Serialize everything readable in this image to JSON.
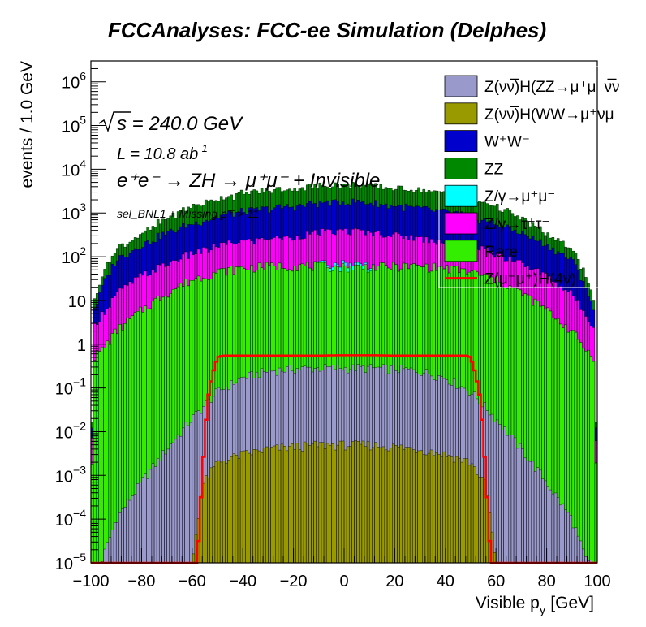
{
  "chart_data": {
    "type": "histogram-stacked",
    "title": "FCCAnalyses: FCC-ee Simulation (Delphes)",
    "xlabel": "Visible p",
    "xlabel_sub": "y",
    "xlabel_unit": "[GeV]",
    "ylabel": "events / 1.0 GeV",
    "xlim": [
      -100,
      100
    ],
    "ylim": [
      1e-05,
      3000000
    ],
    "yscale": "log",
    "bin_width": 1.0,
    "x_ticks": [
      {
        "value": -100,
        "label": "−100"
      },
      {
        "value": -80,
        "label": "−80"
      },
      {
        "value": -60,
        "label": "−60"
      },
      {
        "value": -40,
        "label": "−40"
      },
      {
        "value": -20,
        "label": "−20"
      },
      {
        "value": 0,
        "label": "0"
      },
      {
        "value": 20,
        "label": "20"
      },
      {
        "value": 40,
        "label": "40"
      },
      {
        "value": 60,
        "label": "60"
      },
      {
        "value": 80,
        "label": "80"
      },
      {
        "value": 100,
        "label": "100"
      }
    ],
    "y_ticks": [
      {
        "value": 1e-05,
        "base": "10",
        "exp": "−5"
      },
      {
        "value": 0.0001,
        "base": "10",
        "exp": "−4"
      },
      {
        "value": 0.001,
        "base": "10",
        "exp": "−3"
      },
      {
        "value": 0.01,
        "base": "10",
        "exp": "−2"
      },
      {
        "value": 0.1,
        "base": "10",
        "exp": "−1"
      },
      {
        "value": 1,
        "base": "1",
        "exp": ""
      },
      {
        "value": 10,
        "base": "10",
        "exp": ""
      },
      {
        "value": 100,
        "base": "10",
        "exp": "2"
      },
      {
        "value": 1000,
        "base": "10",
        "exp": "3"
      },
      {
        "value": 10000,
        "base": "10",
        "exp": "4"
      },
      {
        "value": 100000,
        "base": "10",
        "exp": "5"
      },
      {
        "value": 1000000,
        "base": "10",
        "exp": "6"
      }
    ],
    "annotations": {
      "sqrt_s": "s = 240.0 GeV",
      "lumi_prefix": "L = 10.8 ab",
      "lumi_exp": "-1",
      "process": "e⁺e⁻ → ZH → μ⁺μ⁻ + Invisible",
      "selection": "sel_BNL1 + Missing pT > 11"
    },
    "stack_profiles_comment_free": true,
    "series": [
      {
        "name": "Z(νν̅)H(ZZ→μ⁺μ⁻ν̅ν)",
        "color": "#9999cc",
        "profile": [
          [
            -98,
            1e-05
          ],
          [
            -96,
            1e-05
          ],
          [
            -90,
            0.0001
          ],
          [
            -80,
            0.0007
          ],
          [
            -70,
            0.004
          ],
          [
            -60,
            0.02
          ],
          [
            -50,
            0.08
          ],
          [
            -40,
            0.17
          ],
          [
            -30,
            0.24
          ],
          [
            -20,
            0.27
          ],
          [
            -10,
            0.28
          ],
          [
            0,
            0.28
          ],
          [
            10,
            0.28
          ],
          [
            20,
            0.27
          ],
          [
            30,
            0.24
          ],
          [
            40,
            0.17
          ],
          [
            50,
            0.08
          ],
          [
            60,
            0.02
          ],
          [
            70,
            0.004
          ],
          [
            80,
            0.0007
          ],
          [
            90,
            0.0001
          ],
          [
            96,
            1e-05
          ],
          [
            98,
            1e-05
          ]
        ]
      },
      {
        "name": "Z(νν̅)H(WW→μ⁺νμ⁻ν̅)",
        "color": "#999900",
        "profile": [
          [
            -60,
            1e-05
          ],
          [
            -56,
            0.0006
          ],
          [
            -50,
            0.002
          ],
          [
            -40,
            0.003
          ],
          [
            -30,
            0.004
          ],
          [
            -20,
            0.0045
          ],
          [
            -10,
            0.005
          ],
          [
            0,
            0.005
          ],
          [
            10,
            0.005
          ],
          [
            20,
            0.0045
          ],
          [
            30,
            0.004
          ],
          [
            40,
            0.003
          ],
          [
            50,
            0.002
          ],
          [
            56,
            0.0006
          ],
          [
            60,
            1e-05
          ]
        ]
      },
      {
        "name": "W⁺W⁻",
        "color": "#0000cc",
        "profile": [
          [
            -100,
            1e-05
          ],
          [
            -99,
            3
          ],
          [
            -95,
            20
          ],
          [
            -90,
            70
          ],
          [
            -80,
            150
          ],
          [
            -70,
            280
          ],
          [
            -60,
            450
          ],
          [
            -50,
            650
          ],
          [
            -40,
            850
          ],
          [
            -30,
            1000
          ],
          [
            -20,
            1150
          ],
          [
            -10,
            1300
          ],
          [
            0,
            1400
          ],
          [
            10,
            1350
          ],
          [
            20,
            1150
          ],
          [
            30,
            1000
          ],
          [
            40,
            850
          ],
          [
            50,
            650
          ],
          [
            60,
            450
          ],
          [
            70,
            280
          ],
          [
            80,
            150
          ],
          [
            90,
            70
          ],
          [
            95,
            20
          ],
          [
            99,
            3
          ],
          [
            100,
            1e-05
          ]
        ]
      },
      {
        "name": "ZZ",
        "color": "#008800",
        "profile": [
          [
            -100,
            1e-05
          ],
          [
            -99,
            3
          ],
          [
            -95,
            20
          ],
          [
            -90,
            70
          ],
          [
            -80,
            150
          ],
          [
            -75,
            260
          ],
          [
            -70,
            400
          ],
          [
            -60,
            900
          ],
          [
            -50,
            1300
          ],
          [
            -40,
            1700
          ],
          [
            -30,
            2000
          ],
          [
            -20,
            2200
          ],
          [
            -10,
            2500
          ],
          [
            0,
            2700
          ],
          [
            10,
            2600
          ],
          [
            20,
            2200
          ],
          [
            30,
            2000
          ],
          [
            40,
            1700
          ],
          [
            50,
            1300
          ],
          [
            60,
            900
          ],
          [
            70,
            400
          ],
          [
            75,
            260
          ],
          [
            80,
            150
          ],
          [
            90,
            70
          ],
          [
            95,
            20
          ],
          [
            99,
            3
          ],
          [
            100,
            1e-05
          ]
        ]
      },
      {
        "name": "Z/γ→μ⁺μ⁻",
        "color": "#00ffff",
        "profile": [
          [
            -13,
            0.0
          ],
          [
            -12,
            2.0
          ],
          [
            -10,
            6.0
          ],
          [
            -5,
            10
          ],
          [
            0,
            11
          ],
          [
            5,
            10
          ],
          [
            10,
            8.0
          ],
          [
            12,
            2.0
          ],
          [
            13,
            0.0
          ]
        ]
      },
      {
        "name": "Z/γ→τ⁺τ⁻",
        "color": "#ff00ff",
        "profile": [
          [
            -100,
            1e-05
          ],
          [
            -99,
            2
          ],
          [
            -90,
            12
          ],
          [
            -80,
            30
          ],
          [
            -70,
            55
          ],
          [
            -60,
            90
          ],
          [
            -50,
            130
          ],
          [
            -40,
            170
          ],
          [
            -30,
            200
          ],
          [
            -20,
            230
          ],
          [
            -10,
            280
          ],
          [
            0,
            320
          ],
          [
            10,
            300
          ],
          [
            20,
            250
          ],
          [
            30,
            200
          ],
          [
            40,
            170
          ],
          [
            50,
            130
          ],
          [
            60,
            90
          ],
          [
            70,
            55
          ],
          [
            80,
            30
          ],
          [
            90,
            12
          ],
          [
            99,
            2
          ],
          [
            100,
            1e-05
          ]
        ]
      },
      {
        "name": "Rare",
        "color": "#33ee00",
        "profile": [
          [
            -100,
            1e-05
          ],
          [
            -99,
            0.5
          ],
          [
            -95,
            0.8
          ],
          [
            -90,
            2
          ],
          [
            -80,
            6
          ],
          [
            -70,
            15
          ],
          [
            -60,
            30
          ],
          [
            -50,
            45
          ],
          [
            -40,
            55
          ],
          [
            -30,
            60
          ],
          [
            -20,
            62
          ],
          [
            -10,
            60
          ],
          [
            0,
            58
          ],
          [
            10,
            58
          ],
          [
            20,
            60
          ],
          [
            30,
            60
          ],
          [
            40,
            55
          ],
          [
            50,
            45
          ],
          [
            60,
            30
          ],
          [
            70,
            15
          ],
          [
            80,
            6
          ],
          [
            90,
            2
          ],
          [
            95,
            0.8
          ],
          [
            99,
            0.5
          ],
          [
            100,
            1e-05
          ]
        ]
      },
      {
        "name": "Z(μ⁻μ⁺)H(4ν)",
        "color": "#ff0000",
        "style": "line",
        "profile": [
          [
            -100,
            1e-05
          ],
          [
            -58,
            1e-05
          ],
          [
            -56,
            0.001
          ],
          [
            -54,
            0.05
          ],
          [
            -52,
            0.2
          ],
          [
            -50,
            0.5
          ],
          [
            -48,
            0.55
          ],
          [
            -40,
            0.55
          ],
          [
            -30,
            0.55
          ],
          [
            -20,
            0.55
          ],
          [
            -10,
            0.55
          ],
          [
            0,
            0.56
          ],
          [
            10,
            0.56
          ],
          [
            20,
            0.55
          ],
          [
            30,
            0.55
          ],
          [
            40,
            0.55
          ],
          [
            48,
            0.55
          ],
          [
            50,
            0.5
          ],
          [
            52,
            0.2
          ],
          [
            54,
            0.05
          ],
          [
            56,
            0.001
          ],
          [
            58,
            1e-05
          ],
          [
            100,
            1e-05
          ]
        ]
      }
    ],
    "legend": {
      "placement": "top-right",
      "entries": [
        {
          "label": "Z(νν̅)H(ZZ→μ⁺μ⁻ν̅ν",
          "color": "#9999cc",
          "kind": "box"
        },
        {
          "label": "Z(νν̅)H(WW→μ⁺νμ",
          "color": "#999900",
          "kind": "box"
        },
        {
          "label": "W⁺W⁻",
          "color": "#0000cc",
          "kind": "box"
        },
        {
          "label": "ZZ",
          "color": "#008800",
          "kind": "box"
        },
        {
          "label": "Z/γ→μ⁺μ⁻",
          "color": "#00ffff",
          "kind": "box"
        },
        {
          "label": "Z/γ→τ⁺τ⁻",
          "color": "#ff00ff",
          "kind": "box"
        },
        {
          "label": "Rare",
          "color": "#33ee00",
          "kind": "box"
        },
        {
          "label": "Z(μ⁻μ⁺)H(4ν)",
          "color": "#ff0000",
          "kind": "line"
        }
      ]
    },
    "grid": false
  }
}
